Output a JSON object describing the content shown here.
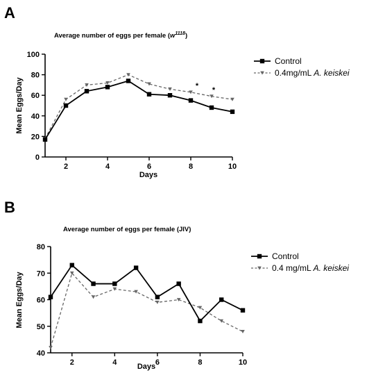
{
  "chart_data": [
    {
      "panel": "A",
      "type": "line",
      "title": "Average number of eggs per female (",
      "title_italic": "w",
      "title_sup": "1118",
      "title_end": ")",
      "xlabel": "Days",
      "ylabel": "Mean  Eggs/Day",
      "xlim": [
        1,
        10
      ],
      "ylim": [
        0,
        100
      ],
      "xticks": [
        2,
        4,
        6,
        8,
        10
      ],
      "yticks": [
        0,
        20,
        40,
        60,
        80,
        100
      ],
      "grid": false,
      "legend_position": "right",
      "series": [
        {
          "name": "Control",
          "name_italic": "",
          "x": [
            1,
            2,
            3,
            4,
            5,
            6,
            7,
            8,
            9,
            10
          ],
          "values": [
            17,
            50,
            64,
            68,
            74,
            61,
            60,
            55,
            48,
            44
          ],
          "color": "#000000",
          "marker": "square",
          "dash": "solid"
        },
        {
          "name": "0.4mg/mL ",
          "name_italic": "A. keiskei",
          "x": [
            1,
            2,
            3,
            4,
            5,
            6,
            7,
            8,
            9,
            10
          ],
          "values": [
            18,
            56,
            70,
            72,
            80,
            71,
            66,
            63,
            59,
            56
          ],
          "color": "#666666",
          "marker": "triangle-down",
          "dash": "dashed"
        }
      ],
      "annotations": [
        {
          "text": "*",
          "x": 8.3,
          "y": 67
        },
        {
          "text": "*",
          "x": 9.1,
          "y": 63
        }
      ]
    },
    {
      "panel": "B",
      "type": "line",
      "title": "Average number of eggs per female (JIV)",
      "title_italic": "",
      "title_sup": "",
      "title_end": "",
      "xlabel": "Days",
      "ylabel": "Mean Eggs/Day",
      "xlim": [
        1,
        10
      ],
      "ylim": [
        40,
        80
      ],
      "xticks": [
        2,
        4,
        6,
        8,
        10
      ],
      "yticks": [
        40,
        50,
        60,
        70,
        80
      ],
      "grid": false,
      "legend_position": "right",
      "series": [
        {
          "name": "Control",
          "name_italic": "",
          "x": [
            1,
            2,
            3,
            4,
            5,
            6,
            7,
            8,
            9,
            10
          ],
          "values": [
            61,
            73,
            66,
            66,
            72,
            61,
            66,
            52,
            60,
            56
          ],
          "color": "#000000",
          "marker": "square",
          "dash": "solid"
        },
        {
          "name": "0.4 mg/mL ",
          "name_italic": "A. keiskei",
          "x": [
            1,
            2,
            3,
            4,
            5,
            6,
            7,
            8,
            9,
            10
          ],
          "values": [
            42,
            70,
            61,
            64,
            63,
            59,
            60,
            57,
            52,
            48
          ],
          "color": "#666666",
          "marker": "triangle-down",
          "dash": "dashed"
        }
      ],
      "annotations": []
    }
  ]
}
